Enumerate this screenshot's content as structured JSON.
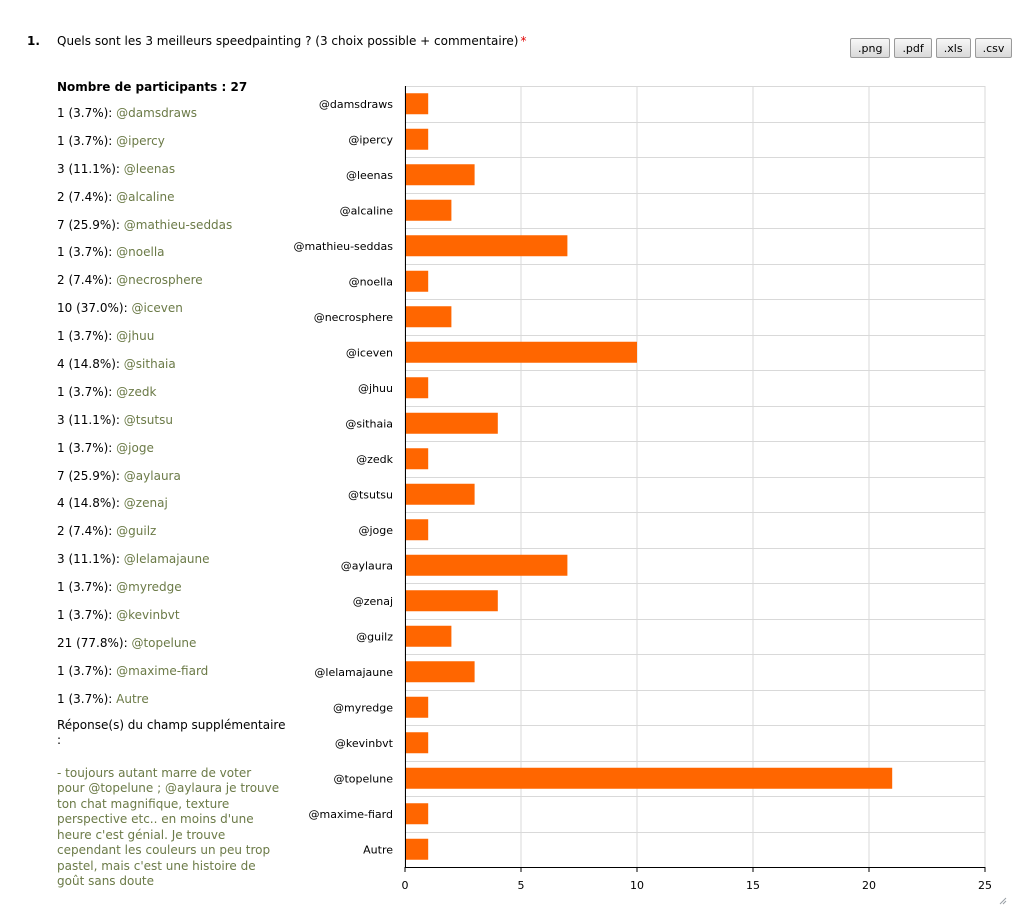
{
  "question": {
    "number": "1.",
    "title": "Quels sont les 3 meilleurs speedpainting ? (3 choix possible + commentaire)",
    "required_mark": "*"
  },
  "export": {
    "png": ".png",
    "pdf": ".pdf",
    "xls": ".xls",
    "csv": ".csv"
  },
  "stats": {
    "participants": "Nombre de participants : 27",
    "rows": [
      {
        "count": "1 (3.7%): ",
        "label": "@damsdraws"
      },
      {
        "count": "1 (3.7%): ",
        "label": "@ipercy"
      },
      {
        "count": "3 (11.1%): ",
        "label": "@leenas"
      },
      {
        "count": "2 (7.4%): ",
        "label": "@alcaline"
      },
      {
        "count": "7 (25.9%): ",
        "label": "@mathieu-seddas"
      },
      {
        "count": "1 (3.7%): ",
        "label": "@noella"
      },
      {
        "count": "2 (7.4%): ",
        "label": "@necrosphere"
      },
      {
        "count": "10 (37.0%): ",
        "label": "@iceven"
      },
      {
        "count": "1 (3.7%): ",
        "label": "@jhuu"
      },
      {
        "count": "4 (14.8%): ",
        "label": "@sithaia"
      },
      {
        "count": "1 (3.7%): ",
        "label": "@zedk"
      },
      {
        "count": "3 (11.1%): ",
        "label": "@tsutsu"
      },
      {
        "count": "1 (3.7%): ",
        "label": "@joge"
      },
      {
        "count": "7 (25.9%): ",
        "label": "@aylaura"
      },
      {
        "count": "4 (14.8%): ",
        "label": "@zenaj"
      },
      {
        "count": "2 (7.4%): ",
        "label": "@guilz"
      },
      {
        "count": "3 (11.1%): ",
        "label": "@lelamajaune"
      },
      {
        "count": "1 (3.7%): ",
        "label": "@myredge"
      },
      {
        "count": "1 (3.7%): ",
        "label": "@kevinbvt"
      },
      {
        "count": "21 (77.8%): ",
        "label": "@topelune"
      },
      {
        "count": "1 (3.7%): ",
        "label": "@maxime-fiard"
      },
      {
        "count": "1 (3.7%): ",
        "label": "Autre"
      }
    ],
    "extra_heading": "Réponse(s) du champ supplémentaire :",
    "extra_text": "- toujours autant marre de voter pour @topelune ; @aylaura je trouve ton chat magnifique, texture perspective etc.. en moins d'une heure c'est génial. Je trouve cependant les couleurs un peu trop pastel, mais c'est une histoire de goût sans doute"
  },
  "colors": {
    "bar": "#ff6600",
    "grid": "#d9d9d9",
    "label_green": "#6b7a47",
    "required": "#e00000"
  },
  "chart_data": {
    "type": "bar",
    "orientation": "horizontal",
    "categories": [
      "@damsdraws",
      "@ipercy",
      "@leenas",
      "@alcaline",
      "@mathieu-seddas",
      "@noella",
      "@necrosphere",
      "@iceven",
      "@jhuu",
      "@sithaia",
      "@zedk",
      "@tsutsu",
      "@joge",
      "@aylaura",
      "@zenaj",
      "@guilz",
      "@lelamajaune",
      "@myredge",
      "@kevinbvt",
      "@topelune",
      "@maxime-fiard",
      "Autre"
    ],
    "values": [
      1,
      1,
      3,
      2,
      7,
      1,
      2,
      10,
      1,
      4,
      1,
      3,
      1,
      7,
      4,
      2,
      3,
      1,
      1,
      21,
      1,
      1
    ],
    "xlim": [
      0,
      25
    ],
    "xticks": [
      0,
      5,
      10,
      15,
      20,
      25
    ],
    "grid": true,
    "title": "",
    "xlabel": "",
    "ylabel": ""
  }
}
